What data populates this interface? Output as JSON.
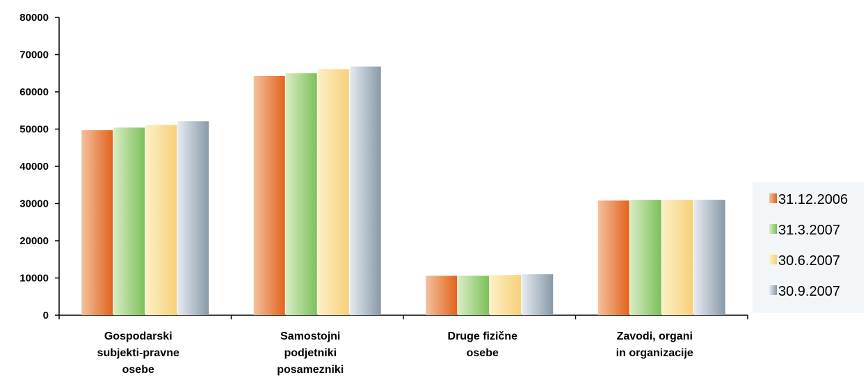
{
  "chart_data": {
    "type": "bar",
    "categories": [
      [
        "Gospodarski",
        "subjekti-pravne",
        "osebe"
      ],
      [
        "Samostojni",
        "podjetniki",
        "posamezniki"
      ],
      [
        "Druge fizične",
        "osebe"
      ],
      [
        "Zavodi, organi",
        "in organizacije"
      ]
    ],
    "series": [
      {
        "name": "31.12.2006",
        "values": [
          49700,
          64300,
          10600,
          30800
        ],
        "colors": {
          "light": "#f4c19d",
          "dark": "#e2631c"
        }
      },
      {
        "name": "31.3.2007",
        "values": [
          50400,
          65000,
          10600,
          31000
        ],
        "colors": {
          "light": "#d8edc4",
          "dark": "#7cc05a"
        }
      },
      {
        "name": "30.6.2007",
        "values": [
          51100,
          66100,
          10800,
          31000
        ],
        "colors": {
          "light": "#fdf0c4",
          "dark": "#f7d07a"
        }
      },
      {
        "name": "30.9.2007",
        "values": [
          52100,
          66800,
          11000,
          31000
        ],
        "colors": {
          "light": "#e6ebf1",
          "dark": "#8899a7"
        }
      }
    ],
    "ylim": [
      0,
      80000
    ],
    "yticks": [
      "0",
      "10000",
      "20000",
      "30000",
      "40000",
      "50000",
      "60000",
      "70000",
      "80000"
    ],
    "grid": false,
    "legend_position": "right"
  }
}
